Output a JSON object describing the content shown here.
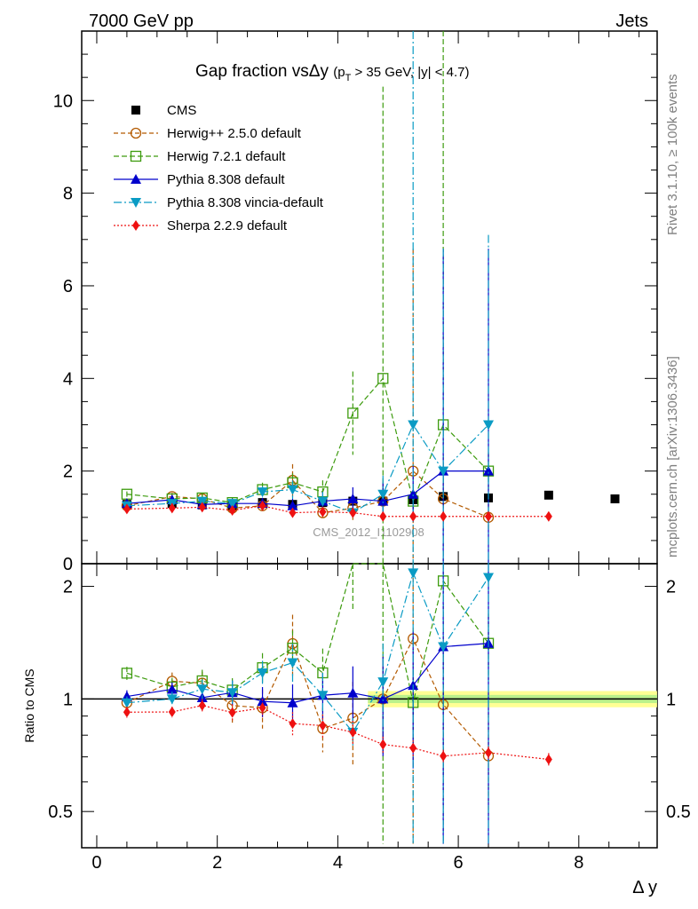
{
  "header": {
    "left": "7000 GeV pp",
    "right": "Jets"
  },
  "side_text": {
    "top": "Rivet 3.1.10, ≥ 100k events",
    "bottom": "mcplots.cern.ch [arXiv:1306.3436]"
  },
  "chart_data": {
    "type": "scatter",
    "title": "Gap fraction vsΔy",
    "subtitle_pre": "(p",
    "subtitle_sub": "T",
    "subtitle_post": " > 35 GeV, |y| < 4.7)",
    "watermark": "CMS_2012_I1102908",
    "xlabel": "Δ y",
    "ylabel_ratio": "Ratio to CMS",
    "xlim": [
      -0.25,
      9.3
    ],
    "ylim": [
      0,
      11.5
    ],
    "ratio_ylim_log": [
      0.4,
      2.3
    ],
    "x_ticks": [
      "0",
      "2",
      "4",
      "6",
      "8"
    ],
    "y_ticks": [
      "0",
      "2",
      "4",
      "6",
      "8",
      "10"
    ],
    "ratio_ticks": [
      "0.5",
      "1",
      "2"
    ],
    "series": [
      {
        "name": "CMS",
        "color": "#000000",
        "style": "data",
        "x": [
          0.5,
          1.25,
          1.75,
          2.25,
          2.75,
          3.25,
          3.75,
          4.25,
          4.75,
          5.25,
          5.75,
          6.5,
          7.5,
          8.6
        ],
        "y": [
          1.28,
          1.3,
          1.27,
          1.25,
          1.32,
          1.28,
          1.32,
          1.35,
          1.35,
          1.38,
          1.45,
          1.42,
          1.48,
          1.4
        ]
      },
      {
        "name": "Herwig++ 2.5.0 default",
        "color": "#b35a00",
        "style": "dash",
        "x": [
          0.5,
          1.25,
          1.75,
          2.25,
          2.75,
          3.25,
          3.75,
          4.25,
          4.75,
          5.25,
          5.75,
          6.5
        ],
        "y": [
          1.25,
          1.45,
          1.4,
          1.2,
          1.25,
          1.8,
          1.1,
          1.2,
          1.35,
          2.0,
          1.4,
          1.0
        ],
        "err": [
          0.05,
          0.08,
          0.1,
          0.12,
          0.15,
          0.35,
          0.15,
          0.3,
          0.4,
          4.8,
          0.5,
          0.3
        ]
      },
      {
        "name": "Herwig 7.2.1 default",
        "color": "#3d9b0e",
        "style": "dash2",
        "x": [
          0.5,
          1.25,
          1.75,
          2.25,
          2.75,
          3.25,
          3.75,
          4.25,
          4.75,
          5.25,
          5.75,
          6.5
        ],
        "y": [
          1.5,
          1.4,
          1.42,
          1.32,
          1.6,
          1.75,
          1.55,
          3.25,
          4.0,
          1.35,
          3.0,
          2.0
        ],
        "err": [
          0.06,
          0.08,
          0.1,
          0.1,
          0.15,
          0.2,
          0.25,
          0.9,
          6.3,
          0.3,
          9.0,
          0.4
        ]
      },
      {
        "name": "Pythia 8.308 default",
        "color": "#0000cc",
        "style": "solid",
        "x": [
          0.5,
          1.25,
          1.75,
          2.25,
          2.75,
          3.25,
          3.75,
          4.25,
          4.75,
          5.25,
          5.75,
          6.5
        ],
        "y": [
          1.3,
          1.38,
          1.28,
          1.3,
          1.3,
          1.25,
          1.35,
          1.4,
          1.35,
          1.5,
          2.0,
          2.0
        ],
        "err": [
          0.05,
          0.06,
          0.08,
          0.1,
          0.12,
          0.15,
          0.2,
          0.25,
          0.4,
          0.6,
          4.8,
          4.8
        ]
      },
      {
        "name": "Pythia 8.308 vincia-default",
        "color": "#0a9bc4",
        "style": "dashdot",
        "x": [
          0.5,
          1.25,
          1.75,
          2.25,
          2.75,
          3.25,
          3.75,
          4.25,
          4.75,
          5.25,
          5.75,
          6.5
        ],
        "y": [
          1.25,
          1.3,
          1.35,
          1.3,
          1.55,
          1.6,
          1.35,
          1.1,
          1.5,
          3.0,
          2.0,
          3.0
        ],
        "err": [
          0.05,
          0.06,
          0.08,
          0.1,
          0.12,
          0.2,
          0.2,
          0.1,
          0.4,
          9.0,
          4.8,
          4.1
        ]
      },
      {
        "name": "Sherpa 2.2.9 default",
        "color": "#ee1111",
        "style": "dot",
        "x": [
          0.5,
          1.25,
          1.75,
          2.25,
          2.75,
          3.25,
          3.75,
          4.25,
          4.75,
          5.25,
          5.75,
          6.5,
          7.5
        ],
        "y": [
          1.18,
          1.2,
          1.22,
          1.15,
          1.25,
          1.1,
          1.12,
          1.1,
          1.02,
          1.02,
          1.02,
          1.02,
          1.02
        ],
        "err": [
          0.04,
          0.04,
          0.05,
          0.06,
          0.07,
          0.08,
          0.08,
          0.08,
          0.05,
          0.05,
          0.04,
          0.04,
          0.04
        ]
      }
    ]
  }
}
